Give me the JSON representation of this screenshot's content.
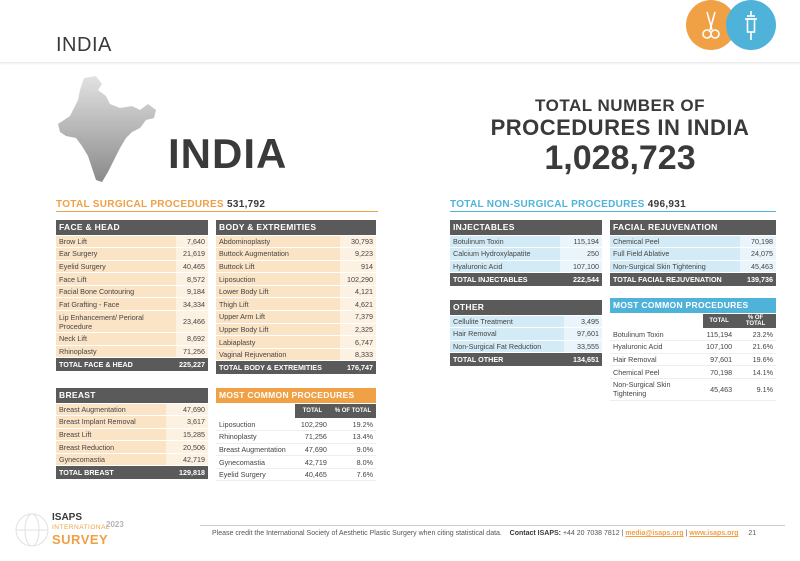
{
  "header": {
    "title": "INDIA"
  },
  "hero": {
    "country": "INDIA"
  },
  "totals": {
    "line1": "TOTAL NUMBER OF",
    "line2": "PROCEDURES IN INDIA",
    "value": "1,028,723"
  },
  "surgical": {
    "label": "TOTAL SURGICAL PROCEDURES",
    "value": "531,792"
  },
  "nonsurgical": {
    "label": "TOTAL NON-SURGICAL PROCEDURES",
    "value": "496,931"
  },
  "face_head": {
    "title": "FACE & HEAD",
    "rows": [
      {
        "name": "Brow Lift",
        "value": "7,640"
      },
      {
        "name": "Ear Surgery",
        "value": "21,619"
      },
      {
        "name": "Eyelid Surgery",
        "value": "40,465"
      },
      {
        "name": "Face Lift",
        "value": "8,572"
      },
      {
        "name": "Facial Bone Contouring",
        "value": "9,184"
      },
      {
        "name": "Fat Grafting - Face",
        "value": "34,334"
      },
      {
        "name": "Lip Enhancement/ Perioral Procedure",
        "value": "23,466"
      },
      {
        "name": "Neck Lift",
        "value": "8,692"
      },
      {
        "name": "Rhinoplasty",
        "value": "71,256"
      }
    ],
    "total_label": "TOTAL FACE & HEAD",
    "total": "225,227"
  },
  "body_ext": {
    "title": "BODY & EXTREMITIES",
    "rows": [
      {
        "name": "Abdominoplasty",
        "value": "30,793"
      },
      {
        "name": "Buttock Augmentation",
        "value": "9,223"
      },
      {
        "name": "Buttock Lift",
        "value": "914"
      },
      {
        "name": "Liposuction",
        "value": "102,290"
      },
      {
        "name": "Lower Body Lift",
        "value": "4,121"
      },
      {
        "name": "Thigh Lift",
        "value": "4,621"
      },
      {
        "name": "Upper Arm Lift",
        "value": "7,379"
      },
      {
        "name": "Upper Body Lift",
        "value": "2,325"
      },
      {
        "name": "Labiaplasty",
        "value": "6,747"
      },
      {
        "name": "Vaginal Rejuvenation",
        "value": "8,333"
      }
    ],
    "total_label": "TOTAL BODY & EXTREMITIES",
    "total": "176,747"
  },
  "breast": {
    "title": "BREAST",
    "rows": [
      {
        "name": "Breast Augmentation",
        "value": "47,690"
      },
      {
        "name": "Breast Implant Removal",
        "value": "3,617"
      },
      {
        "name": "Breast Lift",
        "value": "15,285"
      },
      {
        "name": "Breast Reduction",
        "value": "20,506"
      },
      {
        "name": "Gynecomastia",
        "value": "42,719"
      }
    ],
    "total_label": "TOTAL BREAST",
    "total": "129,818"
  },
  "most_surgical": {
    "title": "MOST COMMON PROCEDURES",
    "col_total": "TOTAL",
    "col_pct": "% OF TOTAL",
    "rows": [
      {
        "name": "Liposuction",
        "value": "102,290",
        "pct": "19.2%"
      },
      {
        "name": "Rhinoplasty",
        "value": "71,256",
        "pct": "13.4%"
      },
      {
        "name": "Breast Augmentation",
        "value": "47,690",
        "pct": "9.0%"
      },
      {
        "name": "Gynecomastia",
        "value": "42,719",
        "pct": "8.0%"
      },
      {
        "name": "Eyelid Surgery",
        "value": "40,465",
        "pct": "7.6%"
      }
    ]
  },
  "injectables": {
    "title": "INJECTABLES",
    "rows": [
      {
        "name": "Botulinum Toxin",
        "value": "115,194"
      },
      {
        "name": "Calcium Hydroxylapatite",
        "value": "250"
      },
      {
        "name": "Hyaluronic Acid",
        "value": "107,100"
      }
    ],
    "total_label": "TOTAL INJECTABLES",
    "total": "222,544"
  },
  "facial_rejuv": {
    "title": "FACIAL REJUVENATION",
    "rows": [
      {
        "name": "Chemical Peel",
        "value": "70,198"
      },
      {
        "name": "Full Field Ablative",
        "value": "24,075"
      },
      {
        "name": "Non-Surgical Skin Tightening",
        "value": "45,463"
      }
    ],
    "total_label": "TOTAL FACIAL REJUVENATION",
    "total": "139,736"
  },
  "other": {
    "title": "OTHER",
    "rows": [
      {
        "name": "Cellulite Treatment",
        "value": "3,495"
      },
      {
        "name": "Hair Removal",
        "value": "97,601"
      },
      {
        "name": "Non-Surgical Fat Reduction",
        "value": "33,555"
      }
    ],
    "total_label": "TOTAL OTHER",
    "total": "134,651"
  },
  "most_nonsurgical": {
    "title": "MOST COMMON PROCEDURES",
    "col_total": "TOTAL",
    "col_pct": "% OF TOTAL",
    "rows": [
      {
        "name": "Botulinum Toxin",
        "value": "115,194",
        "pct": "23.2%"
      },
      {
        "name": "Hyaluronic Acid",
        "value": "107,100",
        "pct": "21.6%"
      },
      {
        "name": "Hair Removal",
        "value": "97,601",
        "pct": "19.6%"
      },
      {
        "name": "Chemical Peel",
        "value": "70,198",
        "pct": "14.1%"
      },
      {
        "name": "Non-Surgical Skin Tightening",
        "value": "45,463",
        "pct": "9.1%"
      }
    ]
  },
  "footer": {
    "credit": "Please credit the International Society of Aesthetic Plastic Surgery when citing statistical data.",
    "contact_label": "Contact ISAPS:",
    "phone": "+44 20 7038 7812 |",
    "email": "media@isaps.org",
    "sep": "|",
    "website": "www.isaps.org",
    "page": "21"
  },
  "logo": {
    "isaps": "ISAPS",
    "international": "INTERNATIONAL",
    "year": "2023",
    "survey": "SURVEY"
  },
  "colors": {
    "orange": "#f0a045",
    "blue": "#4fb3d9",
    "dark": "#5a5a5a"
  }
}
